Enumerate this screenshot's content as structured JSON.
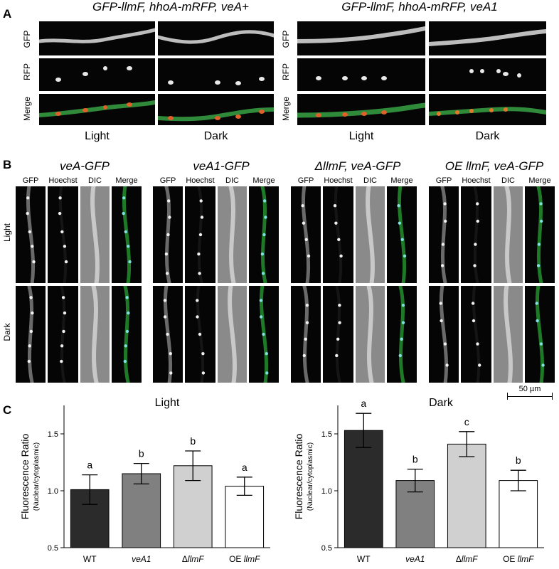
{
  "panel_letters": [
    "A",
    "B",
    "C"
  ],
  "panel_a": {
    "genotypes": [
      "GFP-llmF, hhoA-mRFP, veA+",
      "GFP-llmF, hhoA-mRFP, veA1"
    ],
    "rows": [
      "GFP",
      "RFP",
      "Merge"
    ],
    "conditions": [
      "Light",
      "Dark"
    ]
  },
  "panel_b": {
    "strains": [
      "veA-GFP",
      "veA1-GFP",
      "ΔllmF, veA-GFP",
      "OE llmF, veA-GFP"
    ],
    "channels": [
      "GFP",
      "Hoechst",
      "DIC",
      "Merge"
    ],
    "rows": [
      "Light",
      "Dark"
    ],
    "scale_bar": "50 µm"
  },
  "chart_data": [
    {
      "type": "bar",
      "title": "Light",
      "ylabel": "Fluorescence Ratio",
      "ylabel_sub": "(Nuclear/cytoplasmic)",
      "categories": [
        "WT",
        "veA1",
        "ΔllmF",
        "OE llmF"
      ],
      "values": [
        1.01,
        1.15,
        1.22,
        1.04
      ],
      "errors": [
        0.13,
        0.09,
        0.13,
        0.08
      ],
      "letters": [
        "a",
        "b",
        "b",
        "a"
      ],
      "ylim": [
        0.5,
        1.75
      ],
      "yticks": [
        "0.5",
        "1.0",
        "1.5"
      ]
    },
    {
      "type": "bar",
      "title": "Dark",
      "ylabel": "Fluorescence Ratio",
      "ylabel_sub": "(Nuclear/cytoplasmic)",
      "categories": [
        "WT",
        "veA1",
        "ΔllmF",
        "OE llmF"
      ],
      "values": [
        1.53,
        1.09,
        1.41,
        1.09
      ],
      "errors": [
        0.15,
        0.1,
        0.11,
        0.09
      ],
      "letters": [
        "a",
        "b",
        "c",
        "b"
      ],
      "ylim": [
        0.5,
        1.75
      ],
      "yticks": [
        "0.5",
        "1.0",
        "1.5"
      ]
    }
  ],
  "bar_colors": [
    "#2b2b2b",
    "#808080",
    "#d0d0d0",
    "#ffffff"
  ]
}
